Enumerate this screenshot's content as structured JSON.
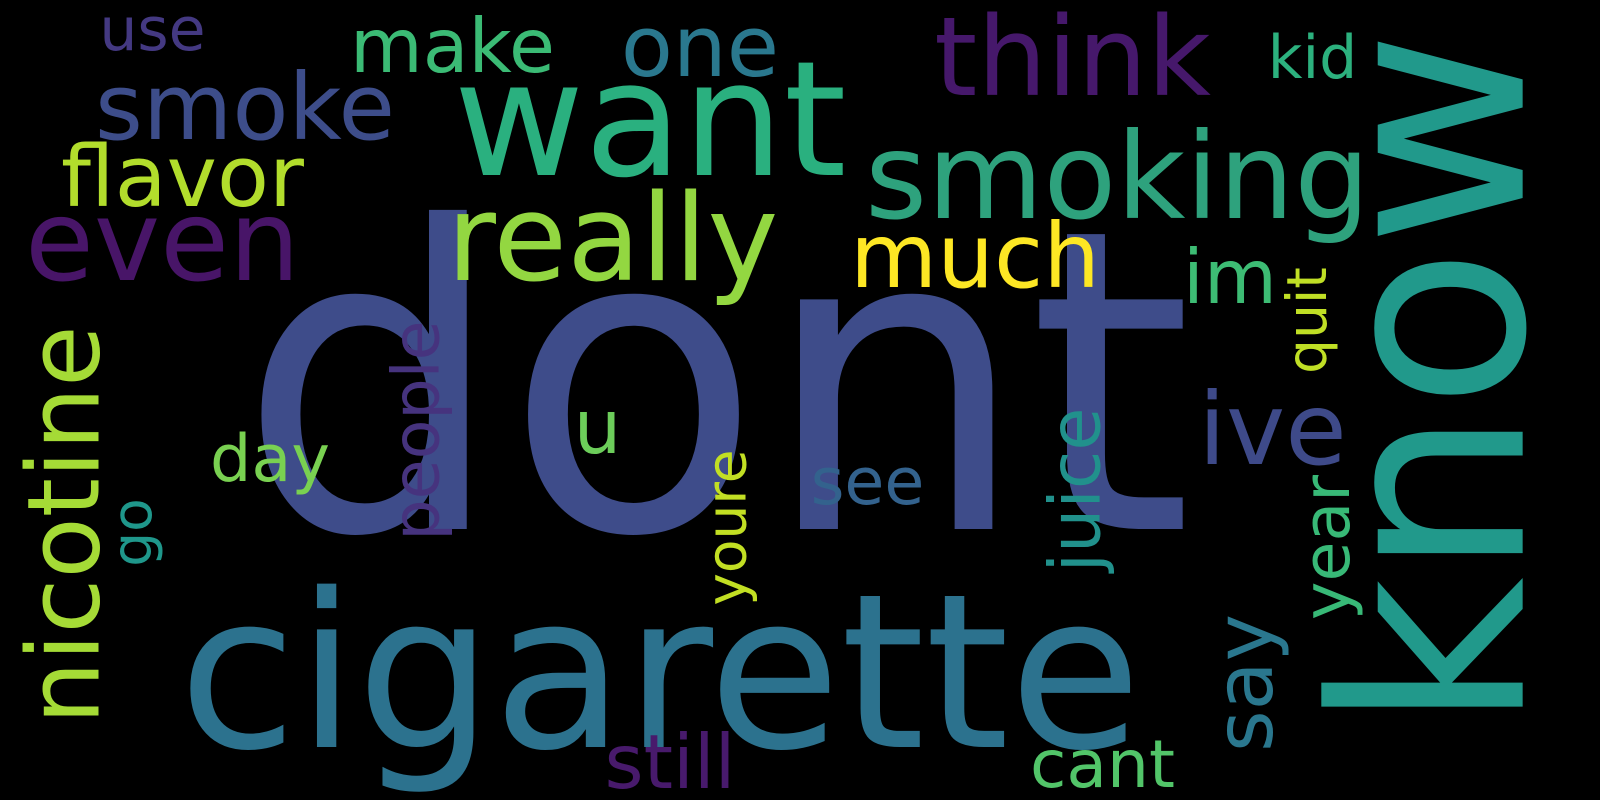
{
  "background": "#000000",
  "words": [
    {
      "key": "dont",
      "text": "dont",
      "color": "#3e4c8a",
      "orientation": "horizontal"
    },
    {
      "key": "know",
      "text": "know",
      "color": "#21998b",
      "orientation": "vertical"
    },
    {
      "key": "cigarette",
      "text": "cigarette",
      "color": "#2c728e",
      "orientation": "horizontal"
    },
    {
      "key": "want",
      "text": "want",
      "color": "#2ab07f",
      "orientation": "horizontal"
    },
    {
      "key": "think",
      "text": "think",
      "color": "#46186b",
      "orientation": "horizontal"
    },
    {
      "key": "smoking",
      "text": "smoking",
      "color": "#2ea27d",
      "orientation": "horizontal"
    },
    {
      "key": "really",
      "text": "really",
      "color": "#93d741",
      "orientation": "horizontal"
    },
    {
      "key": "even",
      "text": "even",
      "color": "#481568",
      "orientation": "horizontal"
    },
    {
      "key": "smoke",
      "text": "smoke",
      "color": "#3d4d8a",
      "orientation": "horizontal"
    },
    {
      "key": "one",
      "text": "one",
      "color": "#2a788e",
      "orientation": "horizontal"
    },
    {
      "key": "make",
      "text": "make",
      "color": "#3bbb75",
      "orientation": "horizontal"
    },
    {
      "key": "use",
      "text": "use",
      "color": "#443982",
      "orientation": "horizontal"
    },
    {
      "key": "flavor",
      "text": "flavor",
      "color": "#b2dd2c",
      "orientation": "horizontal"
    },
    {
      "key": "much",
      "text": "much",
      "color": "#fde724",
      "orientation": "horizontal"
    },
    {
      "key": "kid",
      "text": "kid",
      "color": "#2cb17e",
      "orientation": "horizontal"
    },
    {
      "key": "im",
      "text": "im",
      "color": "#3dbc74",
      "orientation": "horizontal"
    },
    {
      "key": "nicotine",
      "text": "nicotine",
      "color": "#a5db36",
      "orientation": "vertical"
    },
    {
      "key": "juice",
      "text": "juice",
      "color": "#21918c",
      "orientation": "vertical"
    },
    {
      "key": "ive",
      "text": "ive",
      "color": "#3e4a89",
      "orientation": "horizontal"
    },
    {
      "key": "u",
      "text": "u",
      "color": "#6ccd5a",
      "orientation": "horizontal"
    },
    {
      "key": "day",
      "text": "day",
      "color": "#79d151",
      "orientation": "horizontal"
    },
    {
      "key": "people",
      "text": "people",
      "color": "#46337e",
      "orientation": "vertical"
    },
    {
      "key": "youre",
      "text": "youre",
      "color": "#c2df23",
      "orientation": "vertical"
    },
    {
      "key": "see",
      "text": "see",
      "color": "#33628d",
      "orientation": "horizontal"
    },
    {
      "key": "year",
      "text": "year",
      "color": "#38b977",
      "orientation": "vertical"
    },
    {
      "key": "say",
      "text": "say",
      "color": "#2a778e",
      "orientation": "vertical"
    },
    {
      "key": "quit",
      "text": "quit",
      "color": "#c0df25",
      "orientation": "vertical"
    },
    {
      "key": "go",
      "text": "go",
      "color": "#1f978b",
      "orientation": "vertical"
    },
    {
      "key": "still",
      "text": "still",
      "color": "#481a6c",
      "orientation": "horizontal"
    },
    {
      "key": "cant",
      "text": "cant",
      "color": "#52c569",
      "orientation": "horizontal"
    }
  ]
}
